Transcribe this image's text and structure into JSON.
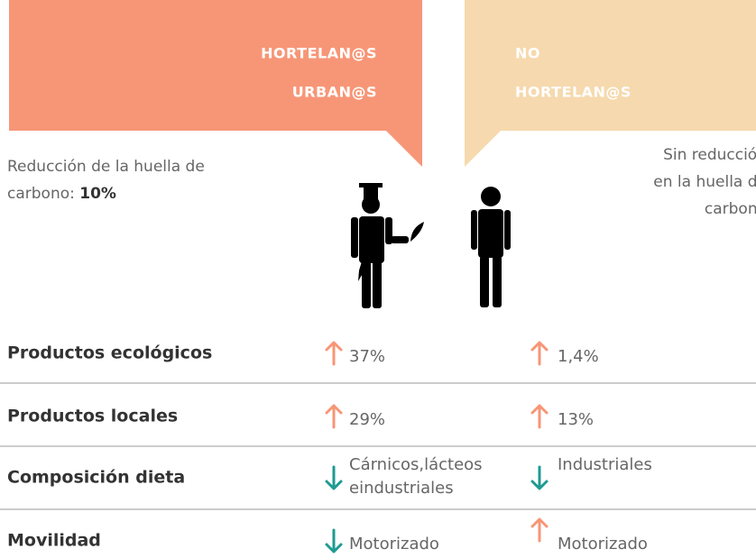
{
  "header": {
    "left": [
      "HORTELAN@S",
      "URBAN@S"
    ],
    "right": [
      "NO",
      "HORTELAN@S"
    ]
  },
  "left_note": {
    "lines": [
      "Reducción de la huella de",
      "carbono: "
    ],
    "highlight": "10%"
  },
  "right_note": {
    "lines": [
      "Sin reducción",
      "en la huella de",
      "carbono"
    ]
  },
  "rows": [
    {
      "label": "Productos ecológicos",
      "left": {
        "trend": "up",
        "text": [
          "37%"
        ]
      },
      "right": {
        "trend": "up",
        "text": [
          "1,4%"
        ]
      }
    },
    {
      "label": "Productos locales",
      "left": {
        "trend": "up",
        "text": [
          "29%"
        ]
      },
      "right": {
        "trend": "up",
        "text": [
          "13%"
        ]
      }
    },
    {
      "label": "Composición dieta",
      "left": {
        "trend": "down",
        "text": [
          "Cárnicos,lácteos",
          "eindustriales"
        ]
      },
      "right": {
        "trend": "down",
        "text": [
          "Industriales"
        ]
      }
    },
    {
      "label": "Movilidad",
      "left": {
        "trend": "down",
        "text": [
          "Motorizado"
        ]
      },
      "right": {
        "trend": "up",
        "text": [
          "Motorizado"
        ]
      }
    }
  ]
}
